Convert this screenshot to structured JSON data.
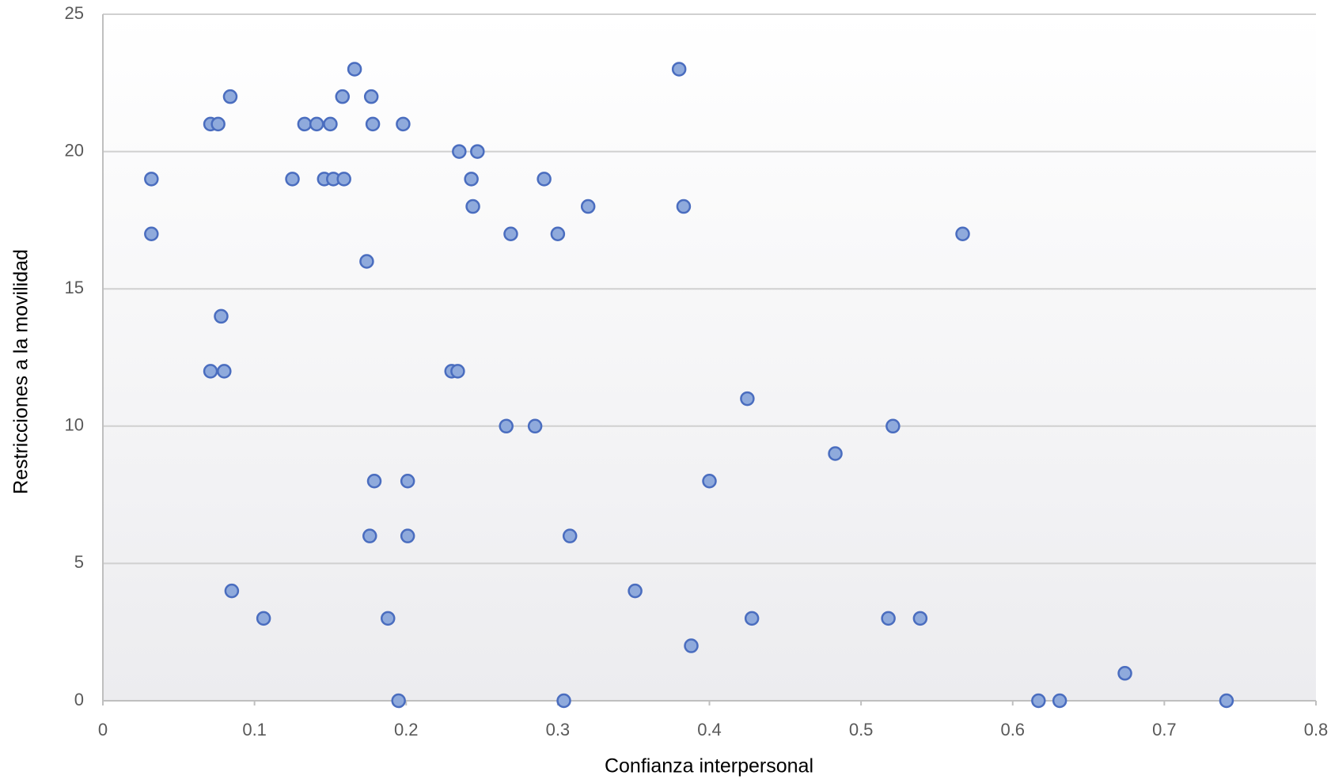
{
  "chart_data": {
    "type": "scatter",
    "x_label": "Confianza interpersonal",
    "y_label": "Restricciones a la movilidad",
    "series": [
      {
        "color": "#8faadc",
        "x": [
          0.032,
          0.032,
          0.071,
          0.076,
          0.084,
          0.125,
          0.133,
          0.141,
          0.15,
          0.146,
          0.152,
          0.159,
          0.158,
          0.166,
          0.177,
          0.178,
          0.198,
          0.174,
          0.078,
          0.071,
          0.08,
          0.235,
          0.247,
          0.243,
          0.244,
          0.291,
          0.269,
          0.3,
          0.32,
          0.38,
          0.383,
          0.567,
          0.23,
          0.234,
          0.266,
          0.285,
          0.425,
          0.521,
          0.483,
          0.179,
          0.201,
          0.4,
          0.176,
          0.201,
          0.308,
          0.085,
          0.351,
          0.106,
          0.188,
          0.428,
          0.518,
          0.539,
          0.388,
          0.674,
          0.195,
          0.304,
          0.617,
          0.631,
          0.741
        ],
        "values": [
          19,
          17,
          21,
          21,
          22,
          19,
          21,
          21,
          21,
          19,
          19,
          19,
          22,
          23,
          22,
          21,
          21,
          16,
          14,
          12,
          12,
          20,
          20,
          19,
          18,
          19,
          17,
          17,
          18,
          23,
          18,
          17,
          12,
          12,
          10,
          10,
          11,
          10,
          9,
          8,
          8,
          8,
          6,
          6,
          6,
          4,
          4,
          3,
          3,
          3,
          3,
          3,
          2,
          1,
          0,
          0,
          0,
          0,
          0
        ]
      }
    ],
    "xlim": [
      0,
      0.8
    ],
    "xticks": [
      0,
      0.1,
      0.2,
      0.3,
      0.4,
      0.5,
      0.6,
      0.7,
      0.8
    ],
    "ylim": [
      0,
      25
    ],
    "yticks": [
      0,
      5,
      10,
      15,
      20,
      25
    ],
    "grid": true
  }
}
